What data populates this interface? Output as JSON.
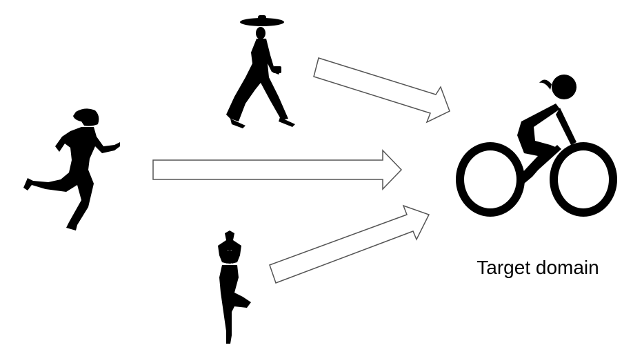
{
  "target_domain_label": "Target domain",
  "colors": {
    "silhouette": "#000000",
    "arrow_stroke": "#555555",
    "arrow_fill": "#ffffff",
    "background": "#ffffff"
  },
  "figures": {
    "sources": [
      "walking-woman-icon",
      "running-woman-icon",
      "yoga-pose-icon"
    ],
    "target": "cyclist-icon"
  }
}
